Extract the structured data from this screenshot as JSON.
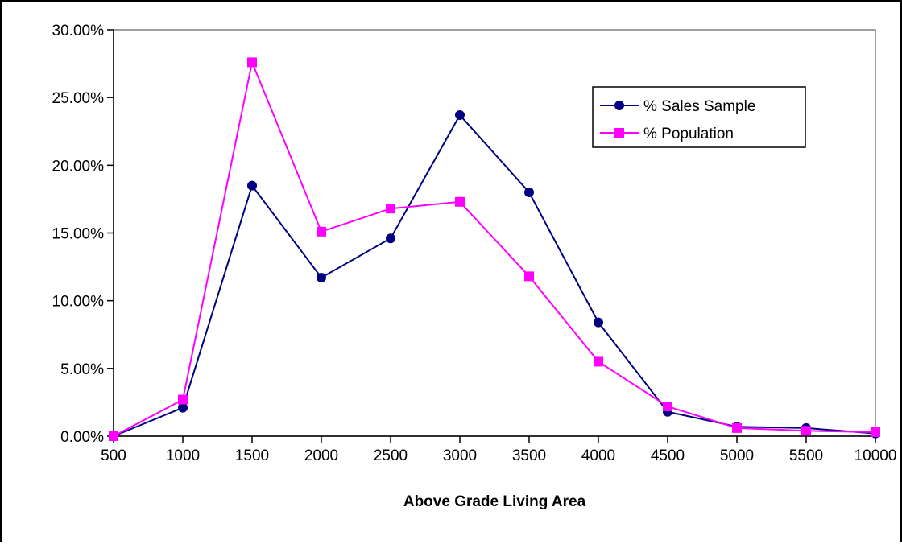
{
  "chart_data": {
    "type": "line",
    "title": "",
    "xlabel": "Above Grade Living Area",
    "ylabel": "",
    "categories": [
      "500",
      "1000",
      "1500",
      "2000",
      "2500",
      "3000",
      "3500",
      "4000",
      "4500",
      "5000",
      "5500",
      "10000"
    ],
    "ylim": [
      0,
      0.3
    ],
    "y_ticks": [
      "0.00%",
      "5.00%",
      "10.00%",
      "15.00%",
      "20.00%",
      "25.00%",
      "30.00%"
    ],
    "grid": false,
    "legend_position": "top-right",
    "series": [
      {
        "name": "% Sales Sample",
        "color": "#000080",
        "marker": "circle",
        "values": [
          0.0,
          0.021,
          0.185,
          0.117,
          0.146,
          0.237,
          0.18,
          0.084,
          0.018,
          0.007,
          0.006,
          0.002
        ]
      },
      {
        "name": "% Population",
        "color": "#FF00FF",
        "marker": "square",
        "values": [
          0.0,
          0.027,
          0.276,
          0.151,
          0.168,
          0.173,
          0.118,
          0.055,
          0.022,
          0.006,
          0.004,
          0.003
        ]
      }
    ]
  }
}
